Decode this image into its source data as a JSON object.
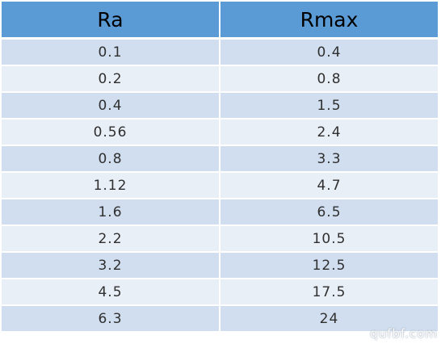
{
  "table": {
    "headers": [
      "Ra",
      "Rmax"
    ],
    "rows": [
      [
        "0.1",
        "0.4"
      ],
      [
        "0.2",
        "0.8"
      ],
      [
        "0.4",
        "1.5"
      ],
      [
        "0.56",
        "2.4"
      ],
      [
        "0.8",
        "3.3"
      ],
      [
        "1.12",
        "4.7"
      ],
      [
        "1.6",
        "6.5"
      ],
      [
        "2.2",
        "10.5"
      ],
      [
        "3.2",
        "12.5"
      ],
      [
        "4.5",
        "17.5"
      ],
      [
        "6.3",
        "24"
      ]
    ]
  },
  "watermark": "qufbf.com",
  "colors": {
    "header_bg": "#5b9bd5",
    "row_dark": "#d0deef",
    "row_light": "#e9eff7"
  }
}
